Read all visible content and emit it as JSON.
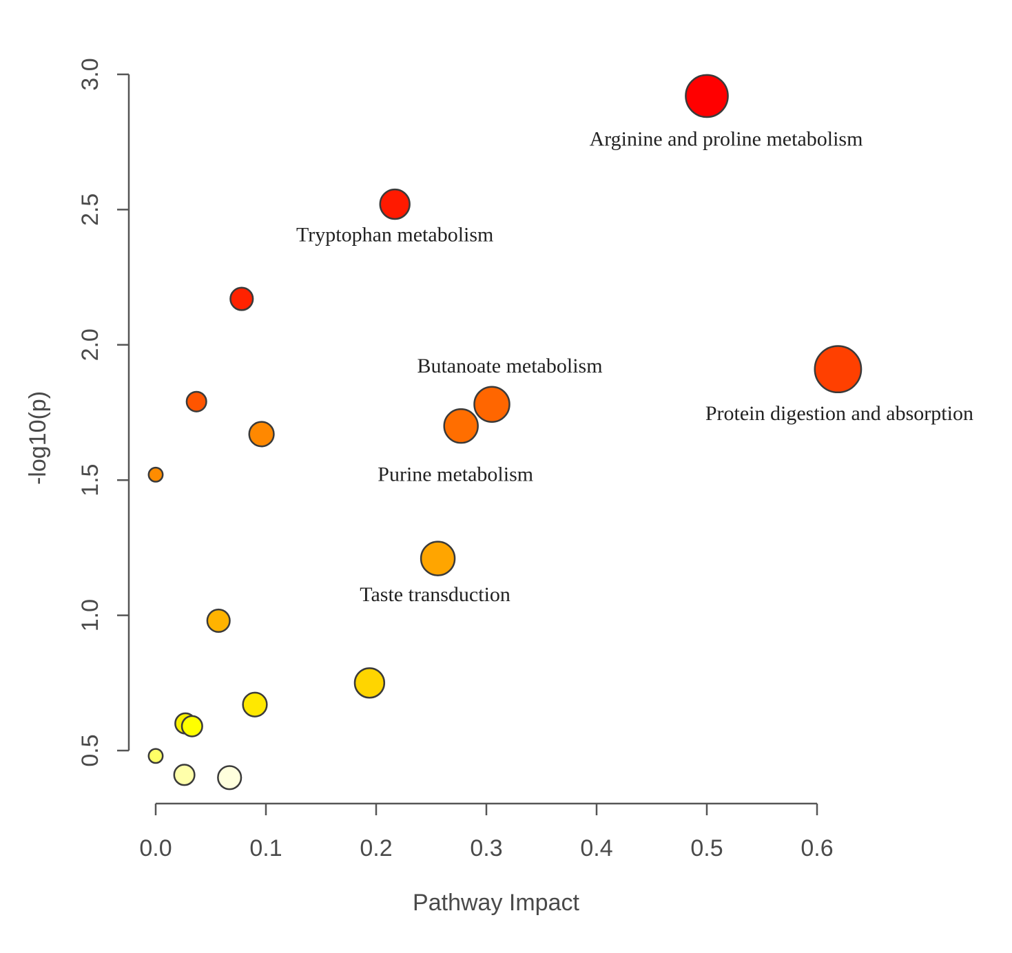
{
  "chart_data": {
    "type": "scatter",
    "title": "",
    "xlabel": "Pathway Impact",
    "ylabel": "-log10(p)",
    "xlim": [
      0.0,
      0.6
    ],
    "ylim": [
      0.5,
      3.0
    ],
    "xticks": [
      "0.0",
      "0.1",
      "0.2",
      "0.3",
      "0.4",
      "0.5",
      "0.6"
    ],
    "yticks": [
      "0.5",
      "1.0",
      "1.5",
      "2.0",
      "2.5",
      "3.0"
    ],
    "grid": false,
    "legend": "none",
    "points": [
      {
        "x": 0.5,
        "y": 2.92,
        "size": 3.0,
        "color": "#ff0000",
        "label": "Arginine and proline metabolism"
      },
      {
        "x": 0.217,
        "y": 2.52,
        "size": 2.1,
        "color": "#ff1a00",
        "label": "Tryptophan metabolism"
      },
      {
        "x": 0.078,
        "y": 2.17,
        "size": 1.6,
        "color": "#ff2200",
        "label": ""
      },
      {
        "x": 0.619,
        "y": 1.91,
        "size": 3.3,
        "color": "#ff4000",
        "label": "Protein digestion and absorption"
      },
      {
        "x": 0.305,
        "y": 1.78,
        "size": 2.5,
        "color": "#ff6600",
        "label": "Butanoate metabolism"
      },
      {
        "x": 0.277,
        "y": 1.7,
        "size": 2.4,
        "color": "#ff6e00",
        "label": "Purine metabolism"
      },
      {
        "x": 0.037,
        "y": 1.79,
        "size": 1.4,
        "color": "#ff5500",
        "label": ""
      },
      {
        "x": 0.096,
        "y": 1.67,
        "size": 1.75,
        "color": "#ff8800",
        "label": ""
      },
      {
        "x": 0.0,
        "y": 1.52,
        "size": 1.0,
        "color": "#ff8c00",
        "label": ""
      },
      {
        "x": 0.256,
        "y": 1.21,
        "size": 2.4,
        "color": "#ffa500",
        "label": "Taste transduction"
      },
      {
        "x": 0.057,
        "y": 0.98,
        "size": 1.6,
        "color": "#ffb300",
        "label": ""
      },
      {
        "x": 0.194,
        "y": 0.75,
        "size": 2.1,
        "color": "#ffd500",
        "label": ""
      },
      {
        "x": 0.09,
        "y": 0.67,
        "size": 1.7,
        "color": "#ffe800",
        "label": ""
      },
      {
        "x": 0.027,
        "y": 0.6,
        "size": 1.45,
        "color": "#f8f000",
        "label": ""
      },
      {
        "x": 0.033,
        "y": 0.59,
        "size": 1.45,
        "color": "#ffff00",
        "label": ""
      },
      {
        "x": 0.0,
        "y": 0.48,
        "size": 1.0,
        "color": "#ffff66",
        "label": ""
      },
      {
        "x": 0.026,
        "y": 0.41,
        "size": 1.45,
        "color": "#ffffaa",
        "label": ""
      },
      {
        "x": 0.067,
        "y": 0.4,
        "size": 1.65,
        "color": "#ffffdd",
        "label": ""
      }
    ]
  }
}
